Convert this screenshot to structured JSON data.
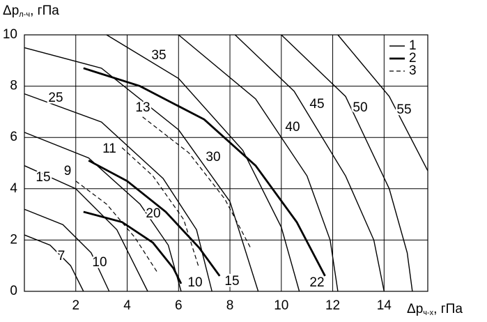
{
  "chart_data": {
    "type": "line",
    "xlabel": {
      "main": "Δp",
      "sub": "ч-х",
      "unit": ", гПа"
    },
    "ylabel": {
      "main": "Δp",
      "sub": "л-ч",
      "unit": ", гПа"
    },
    "xlim": [
      0,
      15.7
    ],
    "ylim": [
      0,
      10
    ],
    "xticks": [
      2,
      4,
      6,
      8,
      10,
      12,
      14
    ],
    "yticks": [
      0,
      2,
      4,
      6,
      8,
      10
    ],
    "grid": true,
    "legend_position": "upper right",
    "line_styles": [
      {
        "name": "1",
        "width": 1.4,
        "dash": "none",
        "color": "#000000"
      },
      {
        "name": "2",
        "width": 2.8,
        "dash": "none",
        "color": "#000000"
      },
      {
        "name": "3",
        "width": 1.2,
        "dash": "6 4",
        "color": "#000000"
      }
    ],
    "series": [
      {
        "name": "7",
        "style": 0,
        "x": [
          0,
          1,
          1.8,
          2.3
        ],
        "values": [
          2.2,
          1.8,
          1.0,
          0
        ]
      },
      {
        "name": "10",
        "style": 0,
        "x": [
          0,
          1.5,
          2.6,
          3.3
        ],
        "values": [
          3.2,
          2.6,
          1.5,
          0
        ]
      },
      {
        "name": "15",
        "style": 0,
        "x": [
          0,
          2,
          3.6,
          4.8
        ],
        "values": [
          4.9,
          4.0,
          2.4,
          0
        ]
      },
      {
        "name": "20",
        "style": 0,
        "x": [
          0,
          2.5,
          4.5,
          5.6,
          6.1
        ],
        "values": [
          6.2,
          5.2,
          3.4,
          1.8,
          0
        ]
      },
      {
        "name": "25",
        "style": 0,
        "x": [
          0,
          3,
          5.4,
          6.7,
          7.3
        ],
        "values": [
          7.7,
          6.6,
          4.4,
          2.4,
          0
        ]
      },
      {
        "name": "30",
        "style": 0,
        "x": [
          0,
          3,
          6,
          8,
          9.1
        ],
        "values": [
          9.5,
          8.7,
          6.3,
          3.5,
          0
        ]
      },
      {
        "name": "35",
        "style": 0,
        "x": [
          3.2,
          6,
          8.5,
          10,
          10.7
        ],
        "values": [
          10,
          8.3,
          5.5,
          2.5,
          0
        ]
      },
      {
        "name": "40",
        "style": 0,
        "x": [
          6,
          9,
          11,
          11.9,
          12.2
        ],
        "values": [
          10,
          7.5,
          4.5,
          2,
          0
        ]
      },
      {
        "name": "45",
        "style": 0,
        "x": [
          8.2,
          10.5,
          12.5,
          13.6,
          14
        ],
        "values": [
          10,
          7.8,
          4.5,
          2,
          0
        ]
      },
      {
        "name": "50",
        "style": 0,
        "x": [
          10,
          12.5,
          14.2,
          14.9,
          15.1
        ],
        "values": [
          10,
          7.6,
          4,
          1.5,
          0
        ]
      },
      {
        "name": "55",
        "style": 0,
        "x": [
          12.2,
          14.2,
          15.7
        ],
        "values": [
          10,
          7.6,
          4.7
        ]
      },
      {
        "name": "10",
        "style": 1,
        "x": [
          2.3,
          3.8,
          5,
          5.8,
          6.1
        ],
        "values": [
          3.1,
          2.7,
          1.9,
          0.9,
          0.3
        ]
      },
      {
        "name": "15",
        "style": 1,
        "x": [
          2.5,
          4,
          5.5,
          6.8,
          7.6
        ],
        "values": [
          5.1,
          4.3,
          3.1,
          1.7,
          0.6
        ]
      },
      {
        "name": "22",
        "style": 1,
        "x": [
          2.3,
          4.5,
          7,
          9,
          10.6,
          11.7
        ],
        "values": [
          8.7,
          8,
          6.7,
          4.9,
          2.7,
          0.6
        ]
      },
      {
        "name": "9",
        "style": 2,
        "x": [
          2,
          3.2,
          4.3,
          5.2
        ],
        "values": [
          4.3,
          3.4,
          2.1,
          0.7
        ]
      },
      {
        "name": "11",
        "style": 2,
        "x": [
          3.8,
          5,
          6.2,
          6.8
        ],
        "values": [
          5.6,
          4.5,
          2.8,
          0.9
        ]
      },
      {
        "name": "13",
        "style": 2,
        "x": [
          4.6,
          6.4,
          7.8,
          8.8
        ],
        "values": [
          6.8,
          5.4,
          3.6,
          1.7
        ]
      }
    ]
  }
}
